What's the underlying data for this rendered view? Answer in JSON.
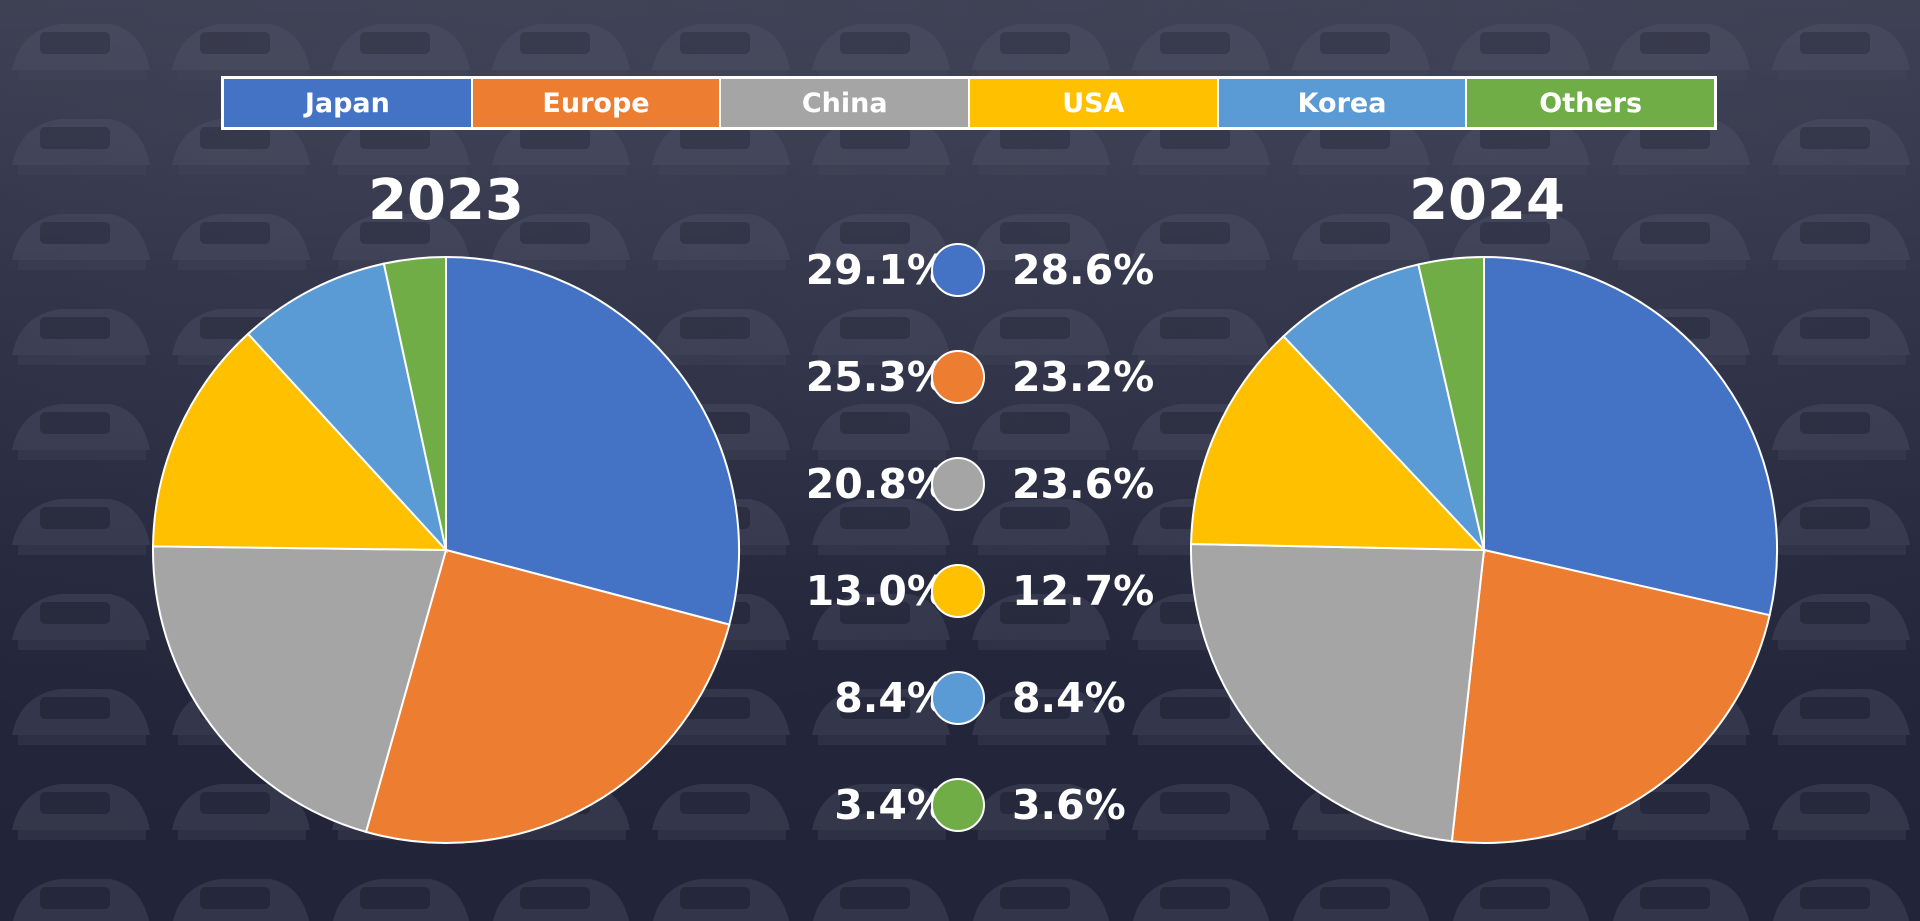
{
  "legend": [
    {
      "label": "Japan",
      "color": "#4472c4"
    },
    {
      "label": "Europe",
      "color": "#ed7d31"
    },
    {
      "label": "China",
      "color": "#a5a5a5"
    },
    {
      "label": "USA",
      "color": "#ffc000"
    },
    {
      "label": "Korea",
      "color": "#5b9bd5"
    },
    {
      "label": "Others",
      "color": "#70ad47"
    }
  ],
  "chart_data": [
    {
      "type": "pie",
      "title": "2023",
      "categories": [
        "Japan",
        "Europe",
        "China",
        "USA",
        "Korea",
        "Others"
      ],
      "values": [
        29.1,
        25.3,
        20.8,
        13.0,
        8.4,
        3.4
      ],
      "labels": [
        "29.1%",
        "25.3%",
        "20.8%",
        "13.0%",
        "8.4%",
        "3.4%"
      ],
      "colors": [
        "#4472c4",
        "#ed7d31",
        "#a5a5a5",
        "#ffc000",
        "#5b9bd5",
        "#70ad47"
      ]
    },
    {
      "type": "pie",
      "title": "2024",
      "categories": [
        "Japan",
        "Europe",
        "China",
        "USA",
        "Korea",
        "Others"
      ],
      "values": [
        28.6,
        23.2,
        23.6,
        12.7,
        8.4,
        3.6
      ],
      "labels": [
        "28.6%",
        "23.2%",
        "23.6%",
        "12.7%",
        "8.4%",
        "3.6%"
      ],
      "colors": [
        "#4472c4",
        "#ed7d31",
        "#a5a5a5",
        "#ffc000",
        "#5b9bd5",
        "#70ad47"
      ]
    }
  ]
}
